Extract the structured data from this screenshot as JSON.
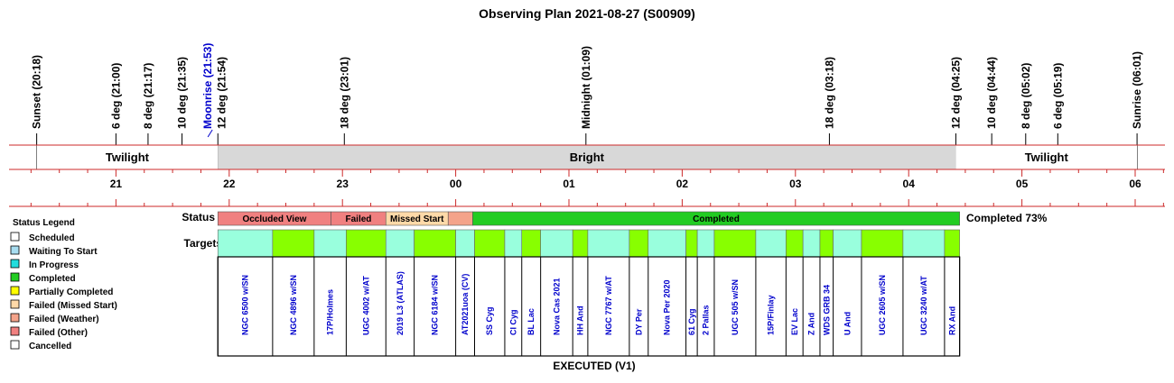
{
  "title": "Observing Plan 2021-08-27 (S00909)",
  "events": [
    {
      "label": "Sunset (20:18)",
      "time": "20:18"
    },
    {
      "label": "6 deg (21:00)",
      "time": "21:00"
    },
    {
      "label": "8 deg (21:17)",
      "time": "21:17"
    },
    {
      "label": "10 deg (21:35)",
      "time": "21:35"
    },
    {
      "label": "Moonrise (21:53)",
      "time": "21:53",
      "color": "#0000cc",
      "offset": -9
    },
    {
      "label": "12 deg (21:54)",
      "time": "21:54",
      "offset": 4
    },
    {
      "label": "18 deg (23:01)",
      "time": "23:01"
    },
    {
      "label": "Midnight (01:09)",
      "time": "25:09"
    },
    {
      "label": "18 deg (03:18)",
      "time": "27:18"
    },
    {
      "label": "12 deg (04:25)",
      "time": "28:25"
    },
    {
      "label": "10 deg (04:44)",
      "time": "28:44"
    },
    {
      "label": "8 deg (05:02)",
      "time": "29:02"
    },
    {
      "label": "6 deg (05:19)",
      "time": "29:19"
    },
    {
      "label": "Sunrise (06:01)",
      "time": "30:01"
    }
  ],
  "bands": [
    {
      "label": "Twilight",
      "start": "20:18",
      "end": "21:54",
      "color": "#ffffff"
    },
    {
      "label": "Bright",
      "start": "21:54",
      "end": "28:25",
      "color": "#d8d8d8"
    },
    {
      "label": "Twilight",
      "start": "28:25",
      "end": "30:01",
      "color": "#ffffff"
    }
  ],
  "hour_labels": [
    "21",
    "22",
    "23",
    "00",
    "01",
    "02",
    "03",
    "04",
    "05",
    "06"
  ],
  "status_label": "Status",
  "targets_label": "Targets",
  "status_segments": [
    {
      "label": "Occluded View",
      "start": "21:54",
      "end": "22:54",
      "color": "#f08080"
    },
    {
      "label": "Failed",
      "start": "22:54",
      "end": "23:23",
      "color": "#f08080"
    },
    {
      "label": "Missed Start",
      "start": "23:23",
      "end": "23:56",
      "color": "#ffd9a8"
    },
    {
      "label": "",
      "start": "23:56",
      "end": "24:09",
      "color": "#f4a38a"
    },
    {
      "label": "Completed",
      "start": "24:09",
      "end": "28:27",
      "color": "#22cc22"
    }
  ],
  "completion": "Completed 73%",
  "targets": [
    {
      "name": "NGC 6500 w/SN",
      "start": "21:54",
      "end": "22:23",
      "color": "#99ffdd"
    },
    {
      "name": "NGC 4896 w/SN",
      "start": "22:23",
      "end": "22:45",
      "color": "#88ff00"
    },
    {
      "name": "17P/Holmes",
      "start": "22:45",
      "end": "23:02",
      "color": "#99ffdd"
    },
    {
      "name": "UGC 4002 w/AT",
      "start": "23:02",
      "end": "23:23",
      "color": "#88ff00"
    },
    {
      "name": "2019 L3 (ATLAS)",
      "start": "23:23",
      "end": "23:38",
      "color": "#99ffdd"
    },
    {
      "name": "NGC 6184 w/SN",
      "start": "23:38",
      "end": "23:60",
      "color": "#88ff00"
    },
    {
      "name": "AT2021uoa (CV)",
      "start": "23:60",
      "end": "24:10",
      "color": "#99ffdd"
    },
    {
      "name": "SS Cyg",
      "start": "24:10",
      "end": "24:26",
      "color": "#88ff00"
    },
    {
      "name": "CI Cyg",
      "start": "24:26",
      "end": "24:35",
      "color": "#99ffdd"
    },
    {
      "name": "BL Lac",
      "start": "24:35",
      "end": "24:45",
      "color": "#88ff00"
    },
    {
      "name": "Nova Cas 2021",
      "start": "24:45",
      "end": "25:02",
      "color": "#99ffdd"
    },
    {
      "name": "HH And",
      "start": "25:02",
      "end": "25:10",
      "color": "#88ff00"
    },
    {
      "name": "NGC 7767 w/AT",
      "start": "25:10",
      "end": "25:32",
      "color": "#99ffdd"
    },
    {
      "name": "DY Per",
      "start": "25:32",
      "end": "25:42",
      "color": "#88ff00"
    },
    {
      "name": "Nova Per 2020",
      "start": "25:42",
      "end": "26:02",
      "color": "#99ffdd"
    },
    {
      "name": "61 Cyg",
      "start": "26:02",
      "end": "26:08",
      "color": "#88ff00"
    },
    {
      "name": "2 Pallas",
      "start": "26:08",
      "end": "26:17",
      "color": "#99ffdd"
    },
    {
      "name": "UGC 505 w/SN",
      "start": "26:17",
      "end": "26:39",
      "color": "#88ff00"
    },
    {
      "name": "15P/Finlay",
      "start": "26:39",
      "end": "26:55",
      "color": "#99ffdd"
    },
    {
      "name": "EV Lac",
      "start": "26:55",
      "end": "27:04",
      "color": "#88ff00"
    },
    {
      "name": "Z And",
      "start": "27:04",
      "end": "27:13",
      "color": "#99ffdd"
    },
    {
      "name": "WDS GRB 34",
      "start": "27:13",
      "end": "27:20",
      "color": "#88ff00"
    },
    {
      "name": "U And",
      "start": "27:20",
      "end": "27:35",
      "color": "#99ffdd"
    },
    {
      "name": "UGC 2605 w/SN",
      "start": "27:35",
      "end": "27:57",
      "color": "#88ff00"
    },
    {
      "name": "UGC 3240 w/AT",
      "start": "27:57",
      "end": "28:19",
      "color": "#99ffdd"
    },
    {
      "name": "RX And",
      "start": "28:19",
      "end": "28:27",
      "color": "#88ff00"
    }
  ],
  "footer": "EXECUTED (V1)",
  "legend": {
    "title": "Status Legend",
    "items": [
      {
        "label": "Scheduled",
        "color": "#ffffff"
      },
      {
        "label": "Waiting To Start",
        "color": "#a8ddf0"
      },
      {
        "label": "In Progress",
        "color": "#22dddd"
      },
      {
        "label": "Completed",
        "color": "#22cc22"
      },
      {
        "label": "Partially Completed",
        "color": "#ffff00"
      },
      {
        "label": "Failed (Missed Start)",
        "color": "#ffd9a8"
      },
      {
        "label": "Failed (Weather)",
        "color": "#f4a38a"
      },
      {
        "label": "Failed (Other)",
        "color": "#f08080"
      },
      {
        "label": "Cancelled",
        "color": "#ffffff"
      }
    ]
  }
}
